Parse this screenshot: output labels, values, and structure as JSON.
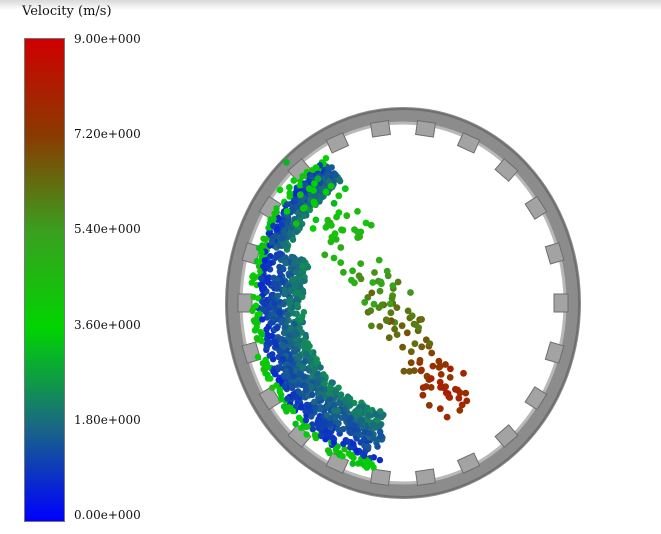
{
  "legend": {
    "title": "Velocity (m/s)",
    "ticks": [
      "9.00e+000",
      "7.20e+000",
      "5.40e+000",
      "3.60e+000",
      "1.80e+000",
      "0.00e+000"
    ],
    "colors": [
      "#d00000",
      "#8a3a00",
      "#3aa020",
      "#00d400",
      "#1a6a80",
      "#0000ff"
    ]
  },
  "scene": {
    "drum": "rotating-drum-with-lifters",
    "drum_color": "#9a9a9a",
    "particles": "velocity-colored-particles"
  }
}
